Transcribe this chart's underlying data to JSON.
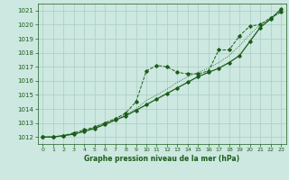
{
  "title": "Graphe pression niveau de la mer (hPa)",
  "background_color": "#cce8e0",
  "grid_color": "#aaccc4",
  "line_color": "#1a5c1a",
  "xlim": [
    -0.5,
    23.5
  ],
  "ylim": [
    1011.5,
    1021.5
  ],
  "yticks": [
    1012,
    1013,
    1014,
    1015,
    1016,
    1017,
    1018,
    1019,
    1020,
    1021
  ],
  "xticks": [
    0,
    1,
    2,
    3,
    4,
    5,
    6,
    7,
    8,
    9,
    10,
    11,
    12,
    13,
    14,
    15,
    16,
    17,
    18,
    19,
    20,
    21,
    22,
    23
  ],
  "s1_x": [
    0,
    1,
    2,
    3,
    4,
    5,
    6,
    7,
    8,
    9,
    10,
    11,
    12,
    13,
    14,
    15,
    16,
    17,
    18,
    19,
    20,
    21,
    22,
    23
  ],
  "s1_y": [
    1012.0,
    1012.0,
    1012.1,
    1012.3,
    1012.5,
    1012.7,
    1013.0,
    1013.3,
    1013.7,
    1014.5,
    1016.7,
    1017.1,
    1017.0,
    1016.6,
    1016.5,
    1016.5,
    1016.7,
    1018.2,
    1018.2,
    1019.2,
    1019.9,
    1020.0,
    1020.5,
    1020.9
  ],
  "s2_x": [
    0,
    1,
    2,
    3,
    4,
    5,
    6,
    7,
    8,
    9,
    10,
    11,
    12,
    13,
    14,
    15,
    16,
    17,
    18,
    19,
    20,
    21,
    22,
    23
  ],
  "s2_y": [
    1012.0,
    1012.0,
    1012.1,
    1012.2,
    1012.4,
    1012.6,
    1012.9,
    1013.2,
    1013.5,
    1013.9,
    1014.3,
    1014.7,
    1015.1,
    1015.5,
    1015.9,
    1016.3,
    1016.6,
    1016.9,
    1017.3,
    1017.8,
    1018.8,
    1019.8,
    1020.4,
    1021.1
  ],
  "s3_x": [
    0,
    1,
    2,
    3,
    4,
    5,
    6,
    7,
    8,
    9,
    10,
    11,
    12,
    13,
    14,
    15,
    16,
    17,
    18,
    19,
    20,
    21,
    22,
    23
  ],
  "s3_y": [
    1012.0,
    1012.0,
    1012.1,
    1012.2,
    1012.4,
    1012.7,
    1013.0,
    1013.3,
    1013.6,
    1014.0,
    1014.6,
    1015.0,
    1015.4,
    1015.9,
    1016.3,
    1016.6,
    1016.9,
    1017.3,
    1017.8,
    1018.5,
    1019.3,
    1020.0,
    1020.4,
    1020.9
  ]
}
